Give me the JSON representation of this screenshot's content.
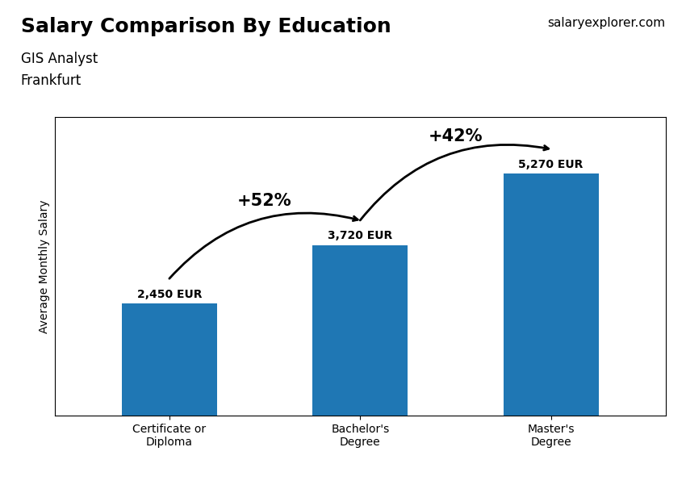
{
  "chart_data": {
    "type": "bar",
    "title": "Salary Comparison By Education",
    "subtitle": [
      "GIS Analyst",
      "Frankfurt"
    ],
    "source": "salaryexplorer.com",
    "ylabel": "Average Monthly Salary",
    "categories": [
      "Certificate or\nDiploma",
      "Bachelor's\nDegree",
      "Master's\nDegree"
    ],
    "values": [
      2450,
      3720,
      5270
    ],
    "value_labels": [
      "2,450 EUR",
      "3,720 EUR",
      "5,270 EUR"
    ],
    "data_labels": true,
    "annotations": [
      {
        "text": "+52%",
        "from": "Certificate or\nDiploma",
        "to": "Bachelor's\nDegree"
      },
      {
        "text": "+42%",
        "from": "Bachelor's\nDegree",
        "to": "Master's\nDegree"
      }
    ],
    "ylim": [
      0,
      6500
    ],
    "tick_labels": "x",
    "grid": false
  }
}
